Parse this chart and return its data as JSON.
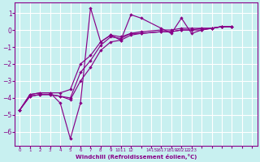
{
  "xlabel": "Windchill (Refroidissement éolien,°C)",
  "bg_color": "#c8f0f0",
  "grid_color": "#ffffff",
  "line_color": "#880088",
  "xlim": [
    -0.5,
    23.5
  ],
  "ylim": [
    -6.8,
    1.6
  ],
  "yticks": [
    1,
    0,
    -1,
    -2,
    -3,
    -4,
    -5,
    -6
  ],
  "xtick_positions": [
    0,
    1,
    2,
    3,
    4,
    5,
    6,
    7,
    8,
    9,
    10,
    11,
    12,
    13,
    14,
    15,
    16,
    17,
    18,
    19,
    20,
    21,
    22,
    23
  ],
  "xtick_labels": [
    "0",
    "1",
    "2",
    "3",
    "4",
    "5",
    "6",
    "7",
    "8",
    "9",
    "1011",
    "12",
    " ",
    "1415",
    "1617",
    "1819",
    "2021",
    "2223",
    "",
    "",
    "",
    "",
    "",
    ""
  ],
  "x_vals": [
    0,
    1,
    2,
    3,
    4,
    5,
    6,
    7,
    8,
    9,
    10,
    11,
    12,
    14,
    15,
    16,
    17,
    18,
    19,
    20,
    21
  ],
  "s1_y": [
    -4.7,
    -3.8,
    -3.7,
    -3.7,
    -4.3,
    -6.4,
    -4.3,
    1.3,
    -0.7,
    -0.3,
    -0.6,
    0.9,
    0.7,
    0.1,
    -0.2,
    0.7,
    -0.2,
    0.0,
    0.1,
    0.2,
    0.2
  ],
  "s2_y": [
    -4.7,
    -3.8,
    -3.7,
    -3.7,
    -3.7,
    -3.5,
    -2.0,
    -1.5,
    -0.7,
    -0.3,
    -0.4,
    -0.2,
    -0.1,
    0.0,
    0.0,
    0.1,
    0.1,
    0.1,
    0.1,
    0.2,
    0.2
  ],
  "s3_y": [
    -4.7,
    -3.9,
    -3.8,
    -3.8,
    -3.9,
    -4.0,
    -2.5,
    -1.8,
    -0.9,
    -0.4,
    -0.5,
    -0.2,
    -0.2,
    -0.1,
    -0.1,
    0.0,
    0.0,
    0.1,
    0.1,
    0.2,
    0.2
  ],
  "s4_y": [
    -4.7,
    -3.9,
    -3.8,
    -3.8,
    -3.9,
    -4.1,
    -3.0,
    -2.2,
    -1.2,
    -0.7,
    -0.6,
    -0.3,
    -0.2,
    -0.1,
    -0.1,
    0.0,
    0.0,
    0.0,
    0.1,
    0.2,
    0.2
  ]
}
